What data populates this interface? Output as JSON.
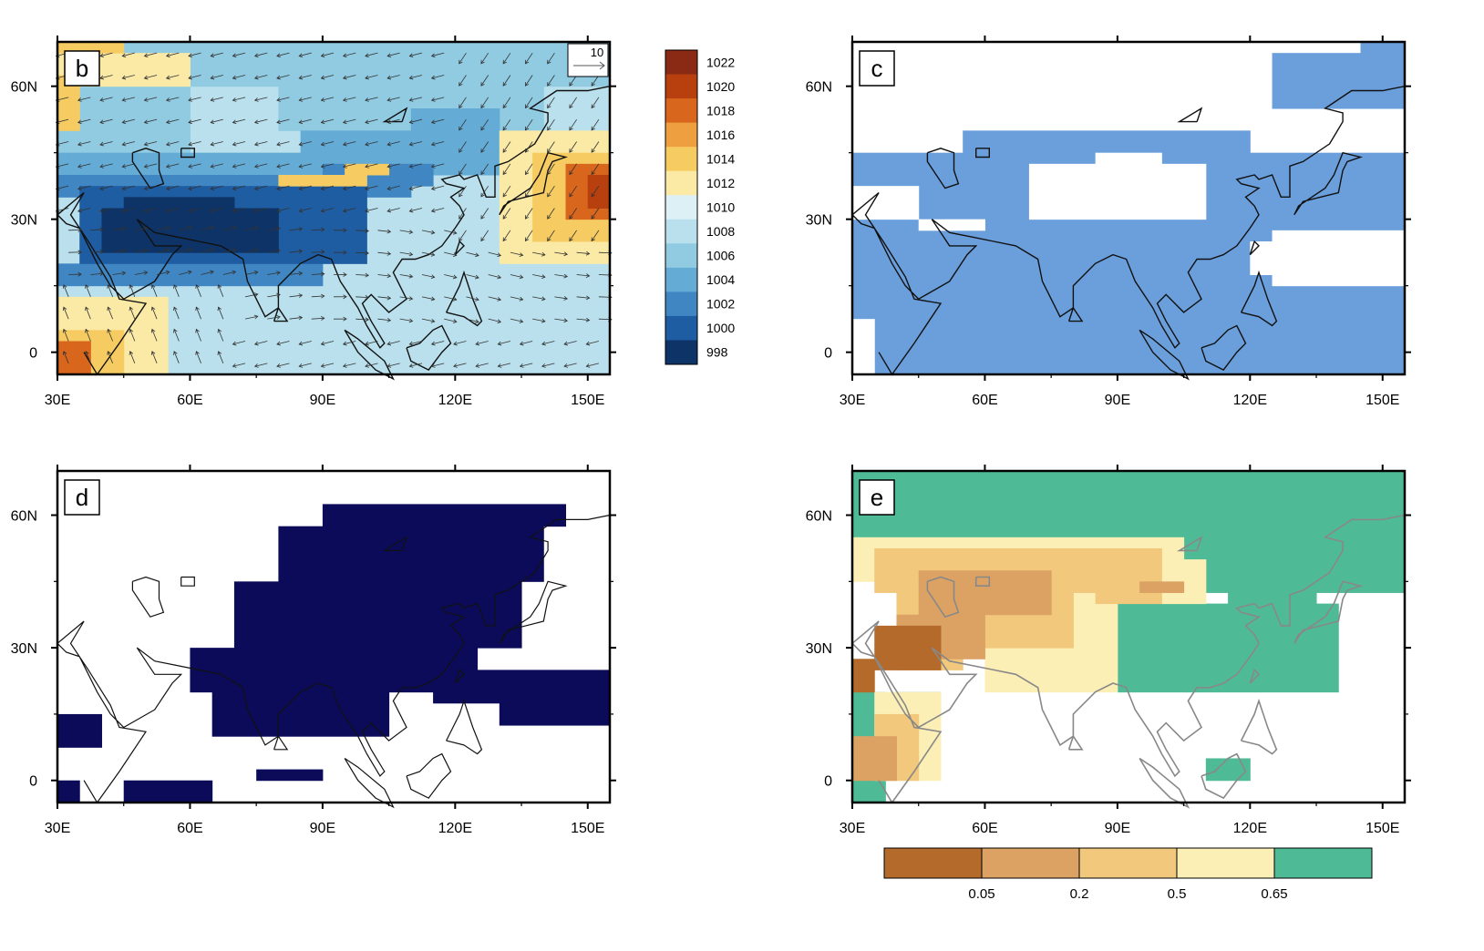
{
  "chart_data": [
    {
      "panel": "b",
      "type": "heatmap",
      "overlay": "wind vectors",
      "xticks": [
        "30E",
        "60E",
        "90E",
        "120E",
        "150E"
      ],
      "yticks": [
        "60N",
        "30N",
        "0"
      ],
      "xlim": [
        30,
        155
      ],
      "ylim": [
        -5,
        70
      ],
      "reference_vector_label": "10",
      "colorbar": {
        "labels": [
          "1022",
          "1020",
          "1018",
          "1016",
          "1014",
          "1012",
          "1010",
          "1008",
          "1006",
          "1004",
          "1002",
          "1000",
          "998"
        ],
        "colors": [
          "#8a2a14",
          "#b8400f",
          "#d8661c",
          "#eea040",
          "#f6cc62",
          "#fbeaa6",
          "#dcf0f6",
          "#b9e0ec",
          "#90cbe2",
          "#64abd6",
          "#3f86c2",
          "#1f5da2",
          "#0e3366"
        ]
      }
    },
    {
      "panel": "c",
      "type": "heatmap",
      "description_color": "#6a9fdc",
      "xticks": [
        "30E",
        "60E",
        "90E",
        "120E",
        "150E"
      ],
      "yticks": [
        "60N",
        "30N",
        "0"
      ],
      "xlim": [
        30,
        155
      ],
      "ylim": [
        -5,
        70
      ]
    },
    {
      "panel": "d",
      "type": "heatmap",
      "description_color": "#0b0b5a",
      "xticks": [
        "30E",
        "60E",
        "90E",
        "120E",
        "150E"
      ],
      "yticks": [
        "60N",
        "30N",
        "0"
      ],
      "xlim": [
        30,
        155
      ],
      "ylim": [
        -5,
        70
      ]
    },
    {
      "panel": "e",
      "type": "heatmap",
      "xticks": [
        "30E",
        "60E",
        "90E",
        "120E",
        "150E"
      ],
      "yticks": [
        "60N",
        "30N",
        "0"
      ],
      "xlim": [
        30,
        155
      ],
      "ylim": [
        -5,
        70
      ],
      "colorbar": {
        "boundaries": [
          "0.05",
          "0.2",
          "0.5",
          "0.65"
        ],
        "colors": [
          "#b36a2b",
          "#dca264",
          "#f1c87c",
          "#fcefb6",
          "#4fbb96"
        ]
      }
    }
  ]
}
